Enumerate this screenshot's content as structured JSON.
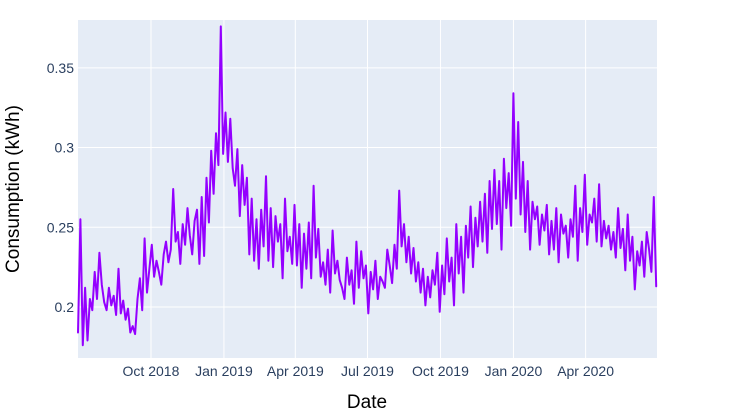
{
  "chart_data": {
    "type": "line",
    "title": "",
    "xlabel": "Date",
    "ylabel": "Consumption (kWh)",
    "x_tick_labels": [
      "Oct 2018",
      "Jan 2019",
      "Apr 2019",
      "Jul 2019",
      "Oct 2019",
      "Jan 2020",
      "Apr 2020"
    ],
    "x_tick_dates": [
      "2018-10-01",
      "2019-01-01",
      "2019-04-01",
      "2019-07-01",
      "2019-10-01",
      "2020-01-01",
      "2020-04-01"
    ],
    "y_tick_labels": [
      "0.2",
      "0.25",
      "0.3",
      "0.35"
    ],
    "y_ticks": [
      0.2,
      0.25,
      0.3,
      0.35
    ],
    "xlim": [
      "2018-07-01",
      "2020-06-30"
    ],
    "ylim": [
      0.168,
      0.38
    ],
    "grid": true,
    "colors": {
      "line": "#9400ff",
      "plot_background": "#e5ecf6",
      "grid": "#ffffff"
    },
    "series": [
      {
        "x": [
          "2018-07-01",
          "2018-07-04",
          "2018-07-07",
          "2018-07-10",
          "2018-07-13",
          "2018-07-16",
          "2018-07-19",
          "2018-07-22",
          "2018-07-25",
          "2018-07-28",
          "2018-07-31",
          "2018-08-03",
          "2018-08-06",
          "2018-08-09",
          "2018-08-12",
          "2018-08-15",
          "2018-08-18",
          "2018-08-21",
          "2018-08-24",
          "2018-08-27",
          "2018-08-30",
          "2018-09-02",
          "2018-09-05",
          "2018-09-08",
          "2018-09-11",
          "2018-09-14",
          "2018-09-17",
          "2018-09-20",
          "2018-09-23",
          "2018-09-26",
          "2018-09-29",
          "2018-10-02",
          "2018-10-05",
          "2018-10-08",
          "2018-10-11",
          "2018-10-14",
          "2018-10-17",
          "2018-10-20",
          "2018-10-23",
          "2018-10-26",
          "2018-10-29",
          "2018-11-01",
          "2018-11-04",
          "2018-11-07",
          "2018-11-10",
          "2018-11-13",
          "2018-11-16",
          "2018-11-19",
          "2018-11-22",
          "2018-11-25",
          "2018-11-28",
          "2018-12-01",
          "2018-12-04",
          "2018-12-07",
          "2018-12-10",
          "2018-12-13",
          "2018-12-16",
          "2018-12-19",
          "2018-12-22",
          "2018-12-25",
          "2018-12-28",
          "2018-12-31",
          "2019-01-03",
          "2019-01-06",
          "2019-01-09",
          "2019-01-12",
          "2019-01-15",
          "2019-01-18",
          "2019-01-21",
          "2019-01-24",
          "2019-01-27",
          "2019-01-30",
          "2019-02-02",
          "2019-02-05",
          "2019-02-08",
          "2019-02-11",
          "2019-02-14",
          "2019-02-17",
          "2019-02-20",
          "2019-02-23",
          "2019-02-26",
          "2019-03-01",
          "2019-03-04",
          "2019-03-07",
          "2019-03-10",
          "2019-03-13",
          "2019-03-16",
          "2019-03-19",
          "2019-03-22",
          "2019-03-25",
          "2019-03-28",
          "2019-03-31",
          "2019-04-03",
          "2019-04-06",
          "2019-04-09",
          "2019-04-12",
          "2019-04-15",
          "2019-04-18",
          "2019-04-21",
          "2019-04-24",
          "2019-04-27",
          "2019-04-30",
          "2019-05-03",
          "2019-05-06",
          "2019-05-09",
          "2019-05-12",
          "2019-05-15",
          "2019-05-18",
          "2019-05-21",
          "2019-05-24",
          "2019-05-27",
          "2019-05-30",
          "2019-06-02",
          "2019-06-05",
          "2019-06-08",
          "2019-06-11",
          "2019-06-14",
          "2019-06-17",
          "2019-06-20",
          "2019-06-23",
          "2019-06-26",
          "2019-06-29",
          "2019-07-02",
          "2019-07-05",
          "2019-07-08",
          "2019-07-11",
          "2019-07-14",
          "2019-07-17",
          "2019-07-20",
          "2019-07-23",
          "2019-07-26",
          "2019-07-29",
          "2019-08-01",
          "2019-08-04",
          "2019-08-07",
          "2019-08-10",
          "2019-08-13",
          "2019-08-16",
          "2019-08-19",
          "2019-08-22",
          "2019-08-25",
          "2019-08-28",
          "2019-08-31",
          "2019-09-03",
          "2019-09-06",
          "2019-09-09",
          "2019-09-12",
          "2019-09-15",
          "2019-09-18",
          "2019-09-21",
          "2019-09-24",
          "2019-09-27",
          "2019-09-30",
          "2019-10-03",
          "2019-10-06",
          "2019-10-09",
          "2019-10-12",
          "2019-10-15",
          "2019-10-18",
          "2019-10-21",
          "2019-10-24",
          "2019-10-27",
          "2019-10-30",
          "2019-11-02",
          "2019-11-05",
          "2019-11-08",
          "2019-11-11",
          "2019-11-14",
          "2019-11-17",
          "2019-11-20",
          "2019-11-23",
          "2019-11-26",
          "2019-11-29",
          "2019-12-02",
          "2019-12-05",
          "2019-12-08",
          "2019-12-11",
          "2019-12-14",
          "2019-12-17",
          "2019-12-20",
          "2019-12-23",
          "2019-12-26",
          "2019-12-29",
          "2020-01-01",
          "2020-01-04",
          "2020-01-07",
          "2020-01-10",
          "2020-01-13",
          "2020-01-16",
          "2020-01-19",
          "2020-01-22",
          "2020-01-25",
          "2020-01-28",
          "2020-01-31",
          "2020-02-03",
          "2020-02-06",
          "2020-02-09",
          "2020-02-12",
          "2020-02-15",
          "2020-02-18",
          "2020-02-21",
          "2020-02-24",
          "2020-02-27",
          "2020-03-01",
          "2020-03-04",
          "2020-03-07",
          "2020-03-10",
          "2020-03-13",
          "2020-03-16",
          "2020-03-19",
          "2020-03-22",
          "2020-03-25",
          "2020-03-28",
          "2020-03-31",
          "2020-04-03",
          "2020-04-06",
          "2020-04-09",
          "2020-04-12",
          "2020-04-15",
          "2020-04-18",
          "2020-04-21",
          "2020-04-24",
          "2020-04-27",
          "2020-04-30",
          "2020-05-03",
          "2020-05-06",
          "2020-05-09",
          "2020-05-12",
          "2020-05-15",
          "2020-05-18",
          "2020-05-21",
          "2020-05-24",
          "2020-05-27",
          "2020-05-30",
          "2020-06-02",
          "2020-06-05",
          "2020-06-08",
          "2020-06-11",
          "2020-06-14",
          "2020-06-17",
          "2020-06-20",
          "2020-06-23",
          "2020-06-26",
          "2020-06-29"
        ],
        "y": [
          0.184,
          0.255,
          0.176,
          0.212,
          0.179,
          0.205,
          0.198,
          0.222,
          0.205,
          0.234,
          0.214,
          0.203,
          0.198,
          0.212,
          0.201,
          0.207,
          0.195,
          0.224,
          0.196,
          0.204,
          0.192,
          0.199,
          0.184,
          0.188,
          0.183,
          0.205,
          0.218,
          0.198,
          0.243,
          0.209,
          0.224,
          0.239,
          0.219,
          0.229,
          0.222,
          0.214,
          0.233,
          0.241,
          0.228,
          0.236,
          0.274,
          0.241,
          0.247,
          0.227,
          0.252,
          0.239,
          0.262,
          0.245,
          0.233,
          0.254,
          0.261,
          0.227,
          0.269,
          0.232,
          0.281,
          0.253,
          0.298,
          0.271,
          0.309,
          0.289,
          0.376,
          0.296,
          0.322,
          0.291,
          0.318,
          0.287,
          0.276,
          0.299,
          0.257,
          0.289,
          0.264,
          0.281,
          0.233,
          0.268,
          0.229,
          0.255,
          0.224,
          0.261,
          0.238,
          0.282,
          0.229,
          0.262,
          0.225,
          0.257,
          0.241,
          0.252,
          0.218,
          0.268,
          0.235,
          0.244,
          0.227,
          0.264,
          0.226,
          0.252,
          0.212,
          0.246,
          0.224,
          0.253,
          0.218,
          0.276,
          0.231,
          0.249,
          0.219,
          0.228,
          0.214,
          0.236,
          0.209,
          0.248,
          0.221,
          0.229,
          0.217,
          0.212,
          0.205,
          0.231,
          0.214,
          0.223,
          0.202,
          0.241,
          0.212,
          0.235,
          0.218,
          0.226,
          0.196,
          0.222,
          0.211,
          0.229,
          0.205,
          0.219,
          0.216,
          0.212,
          0.236,
          0.226,
          0.215,
          0.239,
          0.224,
          0.273,
          0.238,
          0.252,
          0.228,
          0.244,
          0.221,
          0.237,
          0.216,
          0.228,
          0.209,
          0.224,
          0.201,
          0.219,
          0.206,
          0.223,
          0.214,
          0.234,
          0.197,
          0.226,
          0.208,
          0.243,
          0.216,
          0.231,
          0.201,
          0.252,
          0.221,
          0.244,
          0.209,
          0.251,
          0.231,
          0.263,
          0.225,
          0.256,
          0.238,
          0.266,
          0.241,
          0.271,
          0.234,
          0.279,
          0.249,
          0.286,
          0.252,
          0.279,
          0.236,
          0.293,
          0.262,
          0.284,
          0.251,
          0.334,
          0.268,
          0.316,
          0.258,
          0.291,
          0.247,
          0.279,
          0.236,
          0.266,
          0.255,
          0.263,
          0.239,
          0.258,
          0.248,
          0.264,
          0.233,
          0.254,
          0.236,
          0.262,
          0.228,
          0.258,
          0.246,
          0.251,
          0.231,
          0.255,
          0.244,
          0.276,
          0.229,
          0.262,
          0.247,
          0.283,
          0.239,
          0.258,
          0.253,
          0.268,
          0.241,
          0.277,
          0.238,
          0.254,
          0.243,
          0.251,
          0.236,
          0.247,
          0.231,
          0.262,
          0.237,
          0.249,
          0.223,
          0.258,
          0.229,
          0.244,
          0.211,
          0.235,
          0.226,
          0.241,
          0.219,
          0.247,
          0.236,
          0.222,
          0.269,
          0.213
        ]
      }
    ]
  }
}
